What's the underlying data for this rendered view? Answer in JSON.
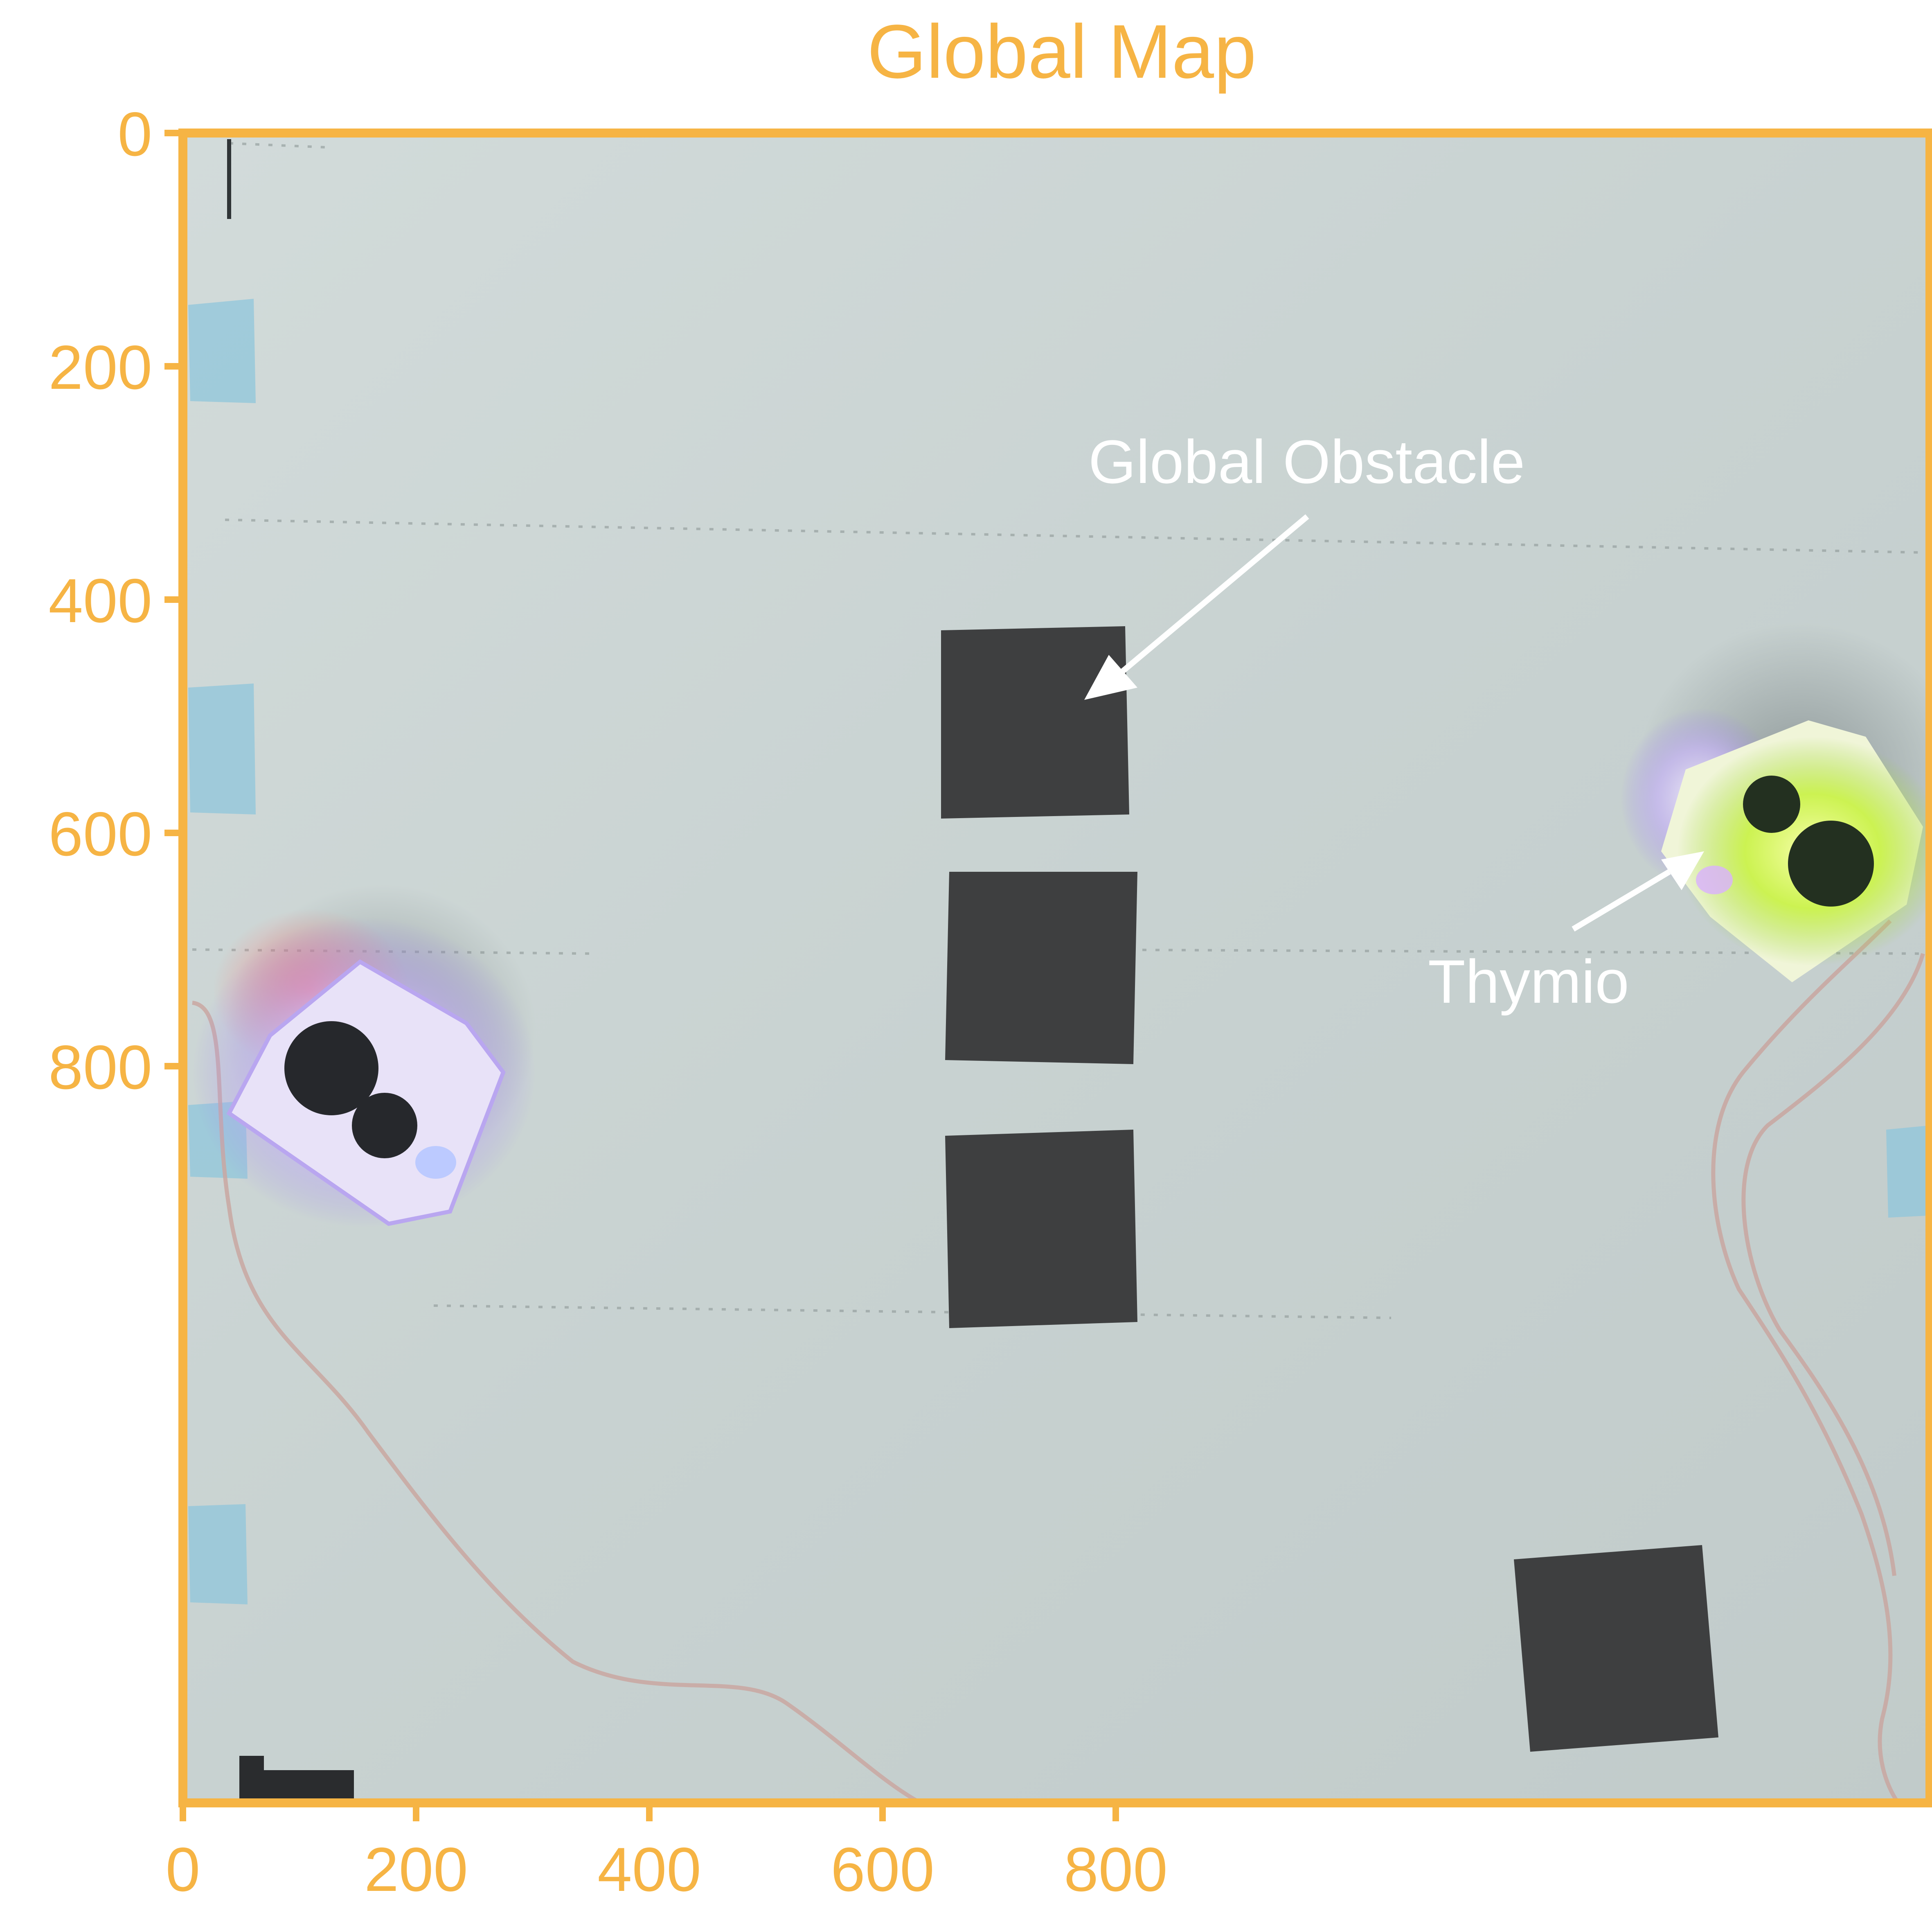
{
  "title": "Global Map",
  "axis_color": "#F6B444",
  "annotation_color": "#FFFFFF",
  "x_axis": {
    "ticks": [
      0,
      200,
      400,
      600,
      800
    ],
    "range": [
      0,
      1000
    ]
  },
  "y_axis": {
    "ticks": [
      0,
      200,
      400,
      600,
      800
    ],
    "range": [
      0,
      960
    ],
    "inverted": true
  },
  "annotations": {
    "obstacle_label": "Global Obstacle",
    "thymio_label": "Thymio"
  },
  "scene": {
    "background_color": "#C9D3D2",
    "obstacle_color": "#3E3F40",
    "tape_color": "#8FC6DB",
    "cable_color": "#C9A7A1"
  }
}
